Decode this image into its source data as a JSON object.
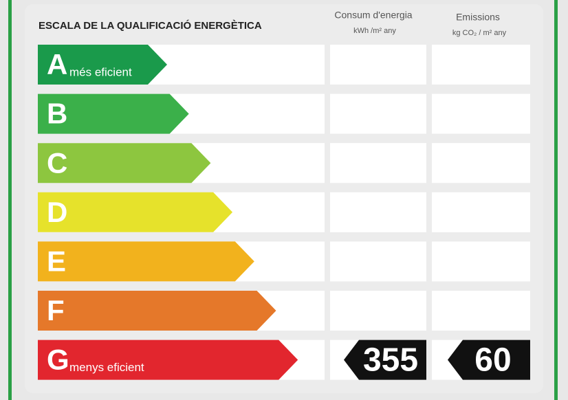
{
  "header": {
    "title": "ESCALA DE LA QUALIFICACIÓ ENERGÈTICA",
    "columns": [
      {
        "title": "Consum d'energia",
        "unit": "kWh /m² any"
      },
      {
        "title": "Emissions",
        "unit": "kg CO₂ / m² any"
      }
    ]
  },
  "rows": [
    {
      "letter": "A",
      "label": "més eficient",
      "color": "#1a9a4b"
    },
    {
      "letter": "B",
      "color": "#3bb04a"
    },
    {
      "letter": "C",
      "color": "#8dc63f"
    },
    {
      "letter": "D",
      "color": "#e6e22b"
    },
    {
      "letter": "E",
      "color": "#f2b21d"
    },
    {
      "letter": "F",
      "color": "#e5782a"
    },
    {
      "letter": "G",
      "label": "menys eficient",
      "color": "#e2262e",
      "consum": 355,
      "emissions": 60
    }
  ]
}
